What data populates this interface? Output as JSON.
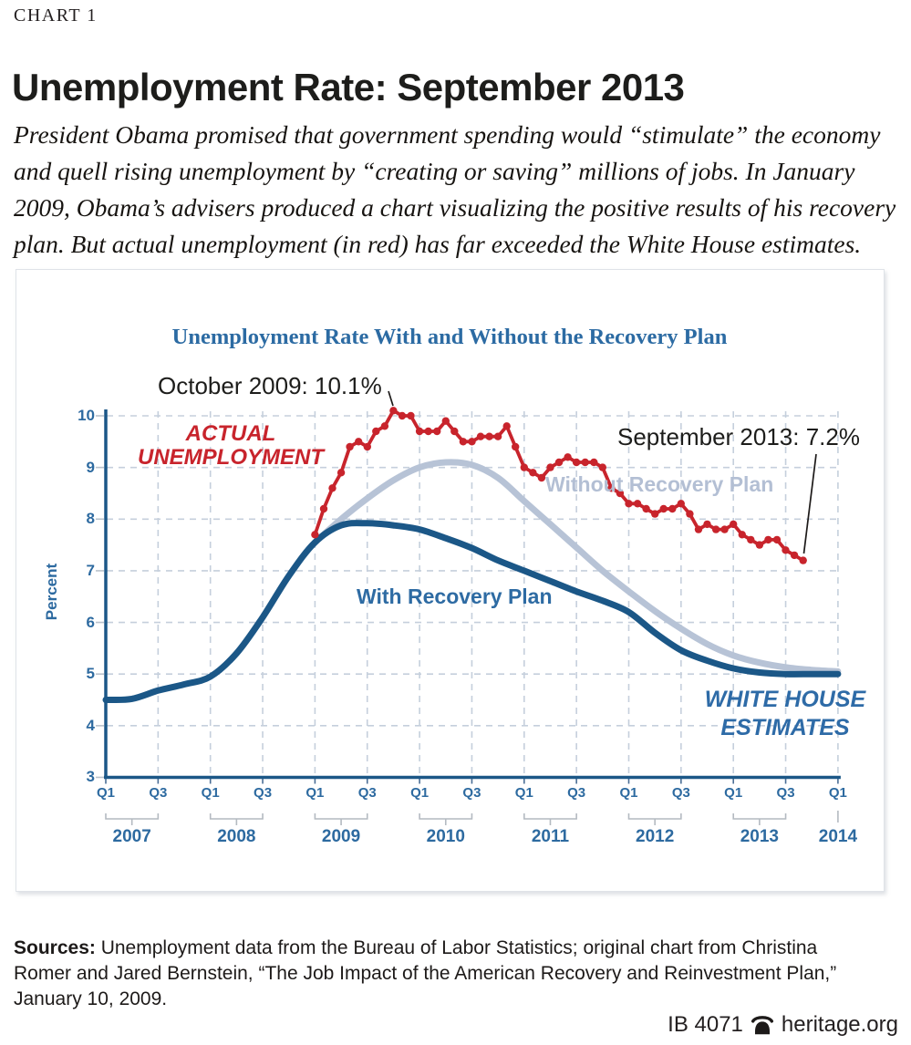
{
  "header": {
    "kicker": "CHART 1",
    "title": "Unemployment Rate: September 2013",
    "intro": "President Obama promised that government spending would “stimulate” the economy and quell rising unemployment by “creating or saving” millions of jobs. In January 2009, Obama’s advisers produced a chart visualizing the positive results of his recovery plan. But actual unemployment (in red) has far exceeded the White House estimates."
  },
  "chart_data": {
    "type": "line",
    "title": "Unemployment Rate With and Without the Recovery Plan",
    "ylabel": "Percent",
    "ylim": [
      3,
      10
    ],
    "y_ticks": [
      "10",
      "9",
      "8",
      "7",
      "6",
      "5",
      "4",
      "3"
    ],
    "grid": "dashed, both axes; vertical line every 2 quarters",
    "legend_position": "inline labels on curves",
    "x_axis": {
      "years": [
        "2007",
        "2008",
        "2009",
        "2010",
        "2011",
        "2012",
        "2013",
        "2014"
      ],
      "quarter_tick_labels": [
        "Q1",
        "Q3"
      ],
      "range": [
        "2007-Q1",
        "2014-Q1"
      ]
    },
    "annotations": [
      {
        "id": "oct-2009",
        "text": "October 2009: 10.1%"
      },
      {
        "id": "sep-2013",
        "text": "September 2013: 7.2%"
      }
    ],
    "estimates_label": {
      "line1": "WHITE HOUSE",
      "line2": "ESTIMATES"
    },
    "series": [
      {
        "name": "Actual Unemployment",
        "label_line1": "ACTUAL",
        "label_line2": "UNEMPLOYMENT",
        "color": "#C8242C",
        "style": "line with point markers",
        "cadence": "monthly",
        "start": "2009-01",
        "end": "2013-09",
        "values": [
          7.7,
          8.2,
          8.6,
          8.9,
          9.4,
          9.5,
          9.4,
          9.7,
          9.8,
          10.1,
          10.0,
          10.0,
          9.7,
          9.7,
          9.7,
          9.9,
          9.7,
          9.5,
          9.5,
          9.6,
          9.6,
          9.6,
          9.8,
          9.4,
          9.0,
          8.9,
          8.8,
          9.0,
          9.1,
          9.2,
          9.1,
          9.1,
          9.1,
          9.0,
          8.6,
          8.5,
          8.3,
          8.3,
          8.2,
          8.1,
          8.2,
          8.2,
          8.3,
          8.1,
          7.8,
          7.9,
          7.8,
          7.8,
          7.9,
          7.7,
          7.6,
          7.5,
          7.6,
          7.6,
          7.4,
          7.3,
          7.2
        ]
      },
      {
        "name": "Without Recovery Plan",
        "label": "Without Recovery Plan",
        "color": "#B7C3D6",
        "style": "smooth thick line",
        "cadence": "quarterly",
        "start": "2009-Q1",
        "end": "2014-Q1",
        "values": [
          7.55,
          8.0,
          8.4,
          8.75,
          9.0,
          9.1,
          9.05,
          8.8,
          8.35,
          7.9,
          7.45,
          7.0,
          6.6,
          6.22,
          5.88,
          5.58,
          5.36,
          5.22,
          5.13,
          5.08,
          5.05
        ]
      },
      {
        "name": "With Recovery Plan",
        "label": "With Recovery Plan",
        "color": "#1B5787",
        "style": "smooth thick line",
        "cadence": "quarterly",
        "start": "2007-Q1",
        "end": "2014-Q1",
        "values": [
          4.5,
          4.52,
          4.68,
          4.8,
          4.95,
          5.4,
          6.1,
          6.9,
          7.55,
          7.88,
          7.92,
          7.88,
          7.8,
          7.63,
          7.44,
          7.2,
          7.0,
          6.8,
          6.6,
          6.42,
          6.2,
          5.8,
          5.46,
          5.26,
          5.11,
          5.03,
          5.0,
          5.0,
          5.0
        ]
      }
    ],
    "colors": {
      "axis": "#1B5787",
      "tick_label": "#2D6AA0",
      "gridline": "#C5CFDC",
      "bracket": "#B4BAC1",
      "annotation_line": "#1D1A19"
    }
  },
  "footer": {
    "sources_label": "Sources:",
    "sources_text": " Unemployment data from the Bureau of Labor Statistics; original chart from Christina Romer and Jared Bernstein, “The Job Impact of the American Recovery and Reinvestment Plan,” January 10, 2009.",
    "doc_id": "IB 4071",
    "site": "heritage.org",
    "logo": "liberty-bell-icon"
  }
}
